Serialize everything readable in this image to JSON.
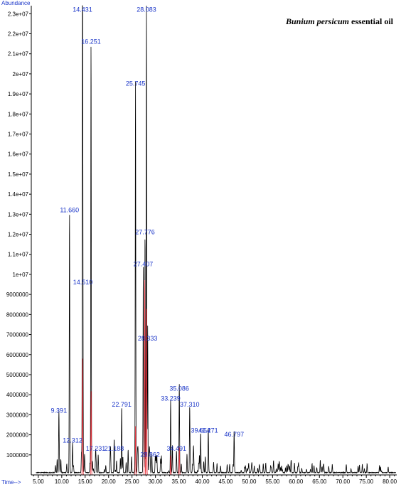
{
  "chart_data": {
    "type": "line",
    "title_italic": "Bunium persicum",
    "title_rest": " essential oil",
    "ylabel": "Abundance",
    "xlabel": "Time-->",
    "xlim": [
      3.5,
      81.5
    ],
    "ylim": [
      0,
      23400000
    ],
    "x_ticks": [
      5,
      10,
      15,
      20,
      25,
      30,
      35,
      40,
      45,
      50,
      55,
      60,
      65,
      70,
      75,
      80
    ],
    "x_tick_labels": [
      "5.00",
      "10.00",
      "15.00",
      "20.00",
      "25.00",
      "30.00",
      "35.00",
      "40.00",
      "45.00",
      "50.00",
      "55.00",
      "60.00",
      "65.00",
      "70.00",
      "75.00",
      "80.00"
    ],
    "y_ticks": [
      1000000,
      2000000,
      3000000,
      4000000,
      5000000,
      6000000,
      7000000,
      8000000,
      9000000,
      10000000,
      11000000,
      12000000,
      13000000,
      14000000,
      15000000,
      16000000,
      17000000,
      18000000,
      19000000,
      20000000,
      21000000,
      22000000,
      23000000
    ],
    "y_tick_labels": [
      "1000000",
      "2000000",
      "3000000",
      "4000000",
      "5000000",
      "6000000",
      "7000000",
      "8000000",
      "9000000",
      "1e+07",
      "1.1e+07",
      "1.2e+07",
      "1.3e+07",
      "1.4e+07",
      "1.5e+07",
      "1.6e+07",
      "1.7e+07",
      "1.8e+07",
      "1.9e+07",
      "2e+07",
      "2.1e+07",
      "2.2e+07",
      "2.3e+07"
    ],
    "series": [
      {
        "color": "#000000",
        "peaks": [
          {
            "rt": 9.391,
            "abundance": 3000000
          },
          {
            "rt": 11.66,
            "abundance": 13000000
          },
          {
            "rt": 12.312,
            "abundance": 1500000
          },
          {
            "rt": 14.431,
            "abundance": 23000000
          },
          {
            "rt": 14.51,
            "abundance": 9400000
          },
          {
            "rt": 16.251,
            "abundance": 21400000
          },
          {
            "rt": 17.231,
            "abundance": 1100000
          },
          {
            "rt": 21.188,
            "abundance": 1700000
          },
          {
            "rt": 22.791,
            "abundance": 3300000
          },
          {
            "rt": 25.745,
            "abundance": 19300000
          },
          {
            "rt": 27.407,
            "abundance": 10300000
          },
          {
            "rt": 27.776,
            "abundance": 11900000
          },
          {
            "rt": 28.083,
            "abundance": 23000000
          },
          {
            "rt": 28.333,
            "abundance": 6600000
          },
          {
            "rt": 28.862,
            "abundance": 800000
          },
          {
            "rt": 33.239,
            "abundance": 3600000
          },
          {
            "rt": 34.491,
            "abundance": 1100000
          },
          {
            "rt": 35.086,
            "abundance": 4100000
          },
          {
            "rt": 37.31,
            "abundance": 3300000
          },
          {
            "rt": 39.654,
            "abundance": 2000000
          },
          {
            "rt": 41.271,
            "abundance": 2000000
          },
          {
            "rt": 46.797,
            "abundance": 1800000
          }
        ]
      },
      {
        "color": "#e8303a",
        "peaks": [
          {
            "rt": 14.45,
            "abundance": 5800000
          },
          {
            "rt": 16.27,
            "abundance": 4200000
          },
          {
            "rt": 25.76,
            "abundance": 2500000
          },
          {
            "rt": 27.72,
            "abundance": 10000000
          },
          {
            "rt": 28.1,
            "abundance": 8700000
          },
          {
            "rt": 33.25,
            "abundance": 1000000
          },
          {
            "rt": 35.1,
            "abundance": 1400000
          }
        ]
      }
    ],
    "peak_labels": [
      {
        "text": "9.391",
        "rt": 9.391,
        "abundance": 3000000
      },
      {
        "text": "11.660",
        "rt": 11.66,
        "abundance": 13000000
      },
      {
        "text": "12.312",
        "rt": 12.312,
        "abundance": 1500000
      },
      {
        "text": "14.431",
        "rt": 14.431,
        "abundance": 23000000
      },
      {
        "text": "14.510",
        "rt": 14.51,
        "abundance": 9400000
      },
      {
        "text": "16.251",
        "rt": 16.251,
        "abundance": 21400000
      },
      {
        "text": "17.231",
        "rt": 17.231,
        "abundance": 1100000
      },
      {
        "text": "21.188",
        "rt": 21.188,
        "abundance": 1100000
      },
      {
        "text": "22.791",
        "rt": 22.791,
        "abundance": 3300000
      },
      {
        "text": "25.745",
        "rt": 25.745,
        "abundance": 19300000
      },
      {
        "text": "27.407",
        "rt": 27.407,
        "abundance": 10300000
      },
      {
        "text": "27.776",
        "rt": 27.776,
        "abundance": 11900000
      },
      {
        "text": "28.083",
        "rt": 28.083,
        "abundance": 23000000
      },
      {
        "text": "28.333",
        "rt": 28.333,
        "abundance": 6600000
      },
      {
        "text": "28.862",
        "rt": 28.862,
        "abundance": 800000
      },
      {
        "text": "33.239",
        "rt": 33.239,
        "abundance": 3600000
      },
      {
        "text": "34.491",
        "rt": 34.491,
        "abundance": 1100000
      },
      {
        "text": "35.086",
        "rt": 35.086,
        "abundance": 4100000
      },
      {
        "text": "37.310",
        "rt": 37.31,
        "abundance": 3300000
      },
      {
        "text": "39.654",
        "rt": 39.654,
        "abundance": 2000000
      },
      {
        "text": "41.271",
        "rt": 41.271,
        "abundance": 2000000
      },
      {
        "text": "46.797",
        "rt": 46.797,
        "abundance": 1800000
      }
    ]
  }
}
